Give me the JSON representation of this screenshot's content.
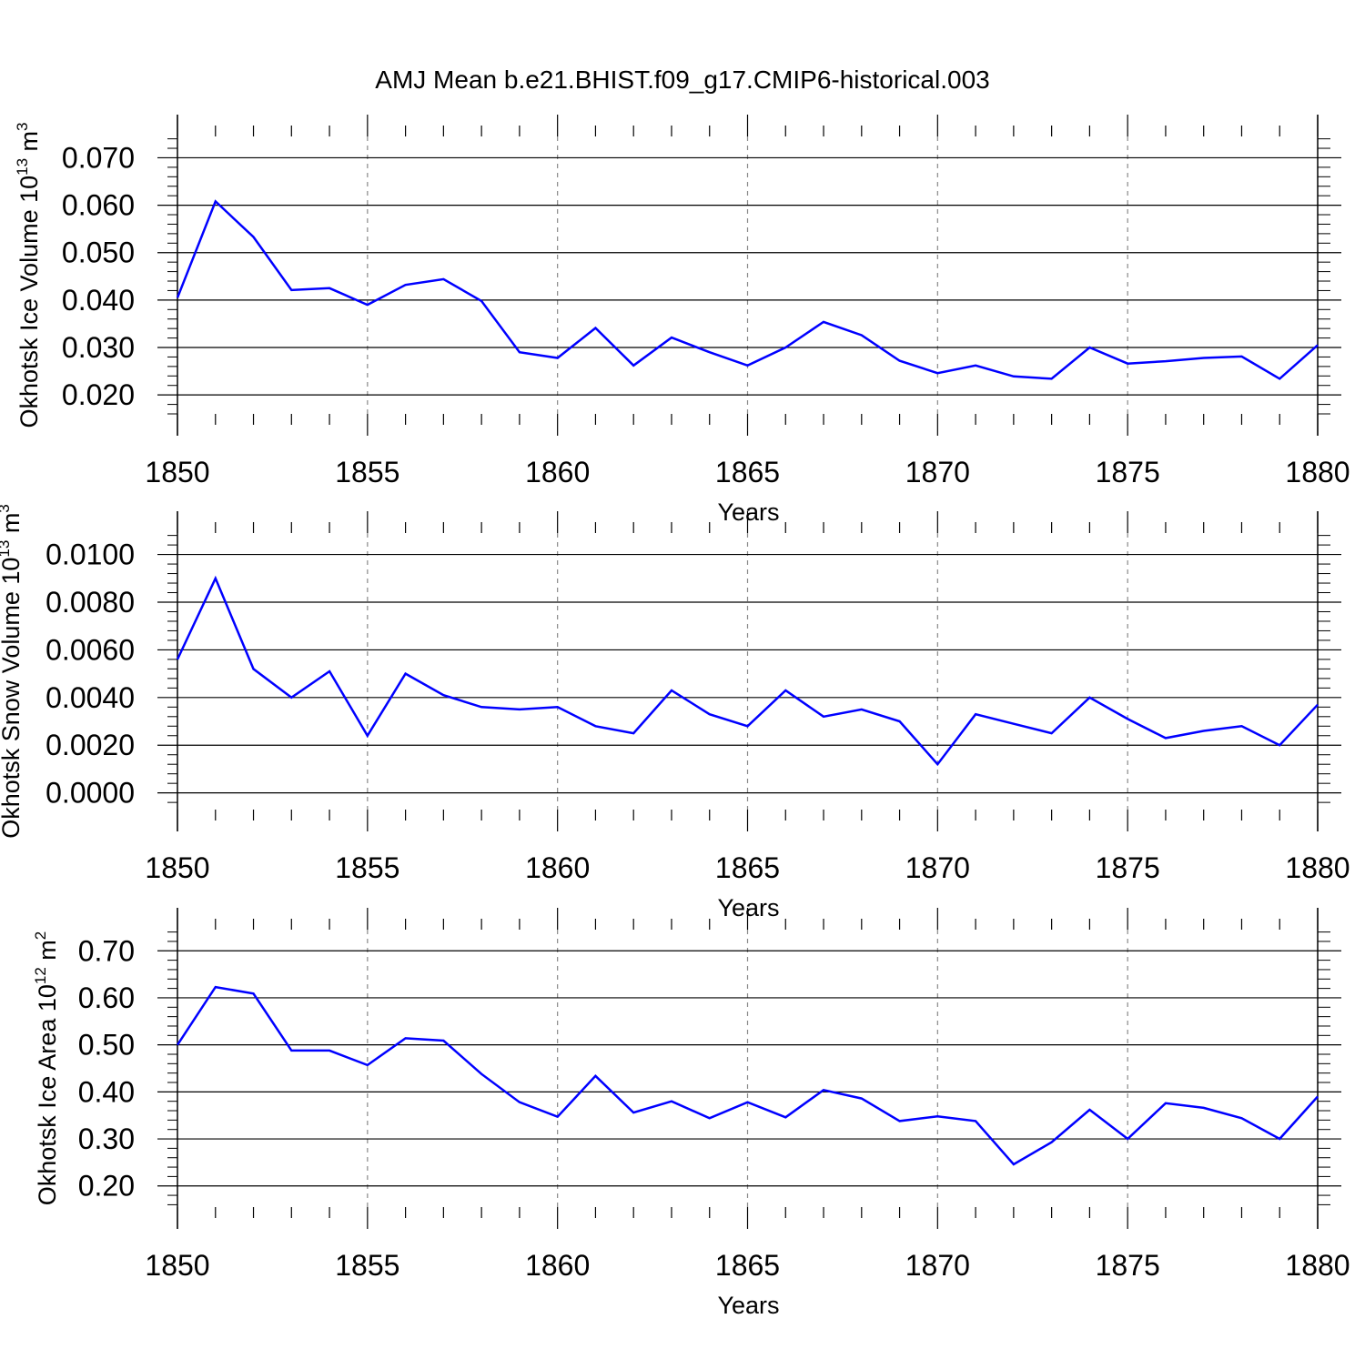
{
  "figure": {
    "title": "AMJ Mean b.e21.BHIST.f09_g17.CMIP6-historical.003"
  },
  "colors": {
    "line": "#0000ff",
    "axis": "#000000",
    "grid": "#888888"
  },
  "chart_data": [
    {
      "type": "line",
      "ylabel_main": "Okhotsk Ice Volume 10",
      "ylabel_exp": "13",
      "ylabel_unit": "m",
      "ylabel_unit_exp": "3",
      "xlabel": "Years",
      "xlim": [
        1850,
        1880
      ],
      "ylim": [
        0.016,
        0.0745
      ],
      "yticks": [
        0.02,
        0.03,
        0.04,
        0.05,
        0.06,
        0.07
      ],
      "ytick_labels": [
        "0.020",
        "0.030",
        "0.040",
        "0.050",
        "0.060",
        "0.070"
      ],
      "xticks": [
        1850,
        1855,
        1860,
        1865,
        1870,
        1875,
        1880
      ],
      "xtick_labels": [
        "1850",
        "1855",
        "1860",
        "1865",
        "1870",
        "1875",
        "1880"
      ],
      "x": [
        1850,
        1851,
        1852,
        1853,
        1854,
        1855,
        1856,
        1857,
        1858,
        1859,
        1860,
        1861,
        1862,
        1863,
        1864,
        1865,
        1866,
        1867,
        1868,
        1869,
        1870,
        1871,
        1872,
        1873,
        1874,
        1875,
        1876,
        1877,
        1878,
        1879,
        1880
      ],
      "values": [
        0.0405,
        0.0608,
        0.0533,
        0.0421,
        0.0425,
        0.039,
        0.0432,
        0.0444,
        0.0398,
        0.029,
        0.0278,
        0.0341,
        0.0262,
        0.0321,
        0.029,
        0.0262,
        0.03,
        0.0354,
        0.0326,
        0.0272,
        0.0246,
        0.0262,
        0.0239,
        0.0234,
        0.03,
        0.0266,
        0.0271,
        0.0278,
        0.0281,
        0.0234,
        0.0305
      ]
    },
    {
      "type": "line",
      "ylabel_main": "Okhotsk Snow Volume 10",
      "ylabel_exp": "13",
      "ylabel_unit": "m",
      "ylabel_unit_exp": "3",
      "xlabel": "Years",
      "xlim": [
        1850,
        1880
      ],
      "ylim": [
        -0.0007,
        0.0109
      ],
      "yticks": [
        0.0,
        0.002,
        0.004,
        0.006,
        0.008,
        0.01
      ],
      "ytick_labels": [
        "0.0000",
        "0.0020",
        "0.0040",
        "0.0060",
        "0.0080",
        "0.0100"
      ],
      "xticks": [
        1850,
        1855,
        1860,
        1865,
        1870,
        1875,
        1880
      ],
      "xtick_labels": [
        "1850",
        "1855",
        "1860",
        "1865",
        "1870",
        "1875",
        "1880"
      ],
      "x": [
        1850,
        1851,
        1852,
        1853,
        1854,
        1855,
        1856,
        1857,
        1858,
        1859,
        1860,
        1861,
        1862,
        1863,
        1864,
        1865,
        1866,
        1867,
        1868,
        1869,
        1870,
        1871,
        1872,
        1873,
        1874,
        1875,
        1876,
        1877,
        1878,
        1879,
        1880
      ],
      "values": [
        0.0056,
        0.009,
        0.0052,
        0.004,
        0.0051,
        0.0024,
        0.005,
        0.0041,
        0.0036,
        0.0035,
        0.0036,
        0.0028,
        0.0025,
        0.0043,
        0.0033,
        0.0028,
        0.0043,
        0.0032,
        0.0035,
        0.003,
        0.0012,
        0.0033,
        0.0029,
        0.0025,
        0.004,
        0.0031,
        0.0023,
        0.0026,
        0.0028,
        0.002,
        0.0037
      ]
    },
    {
      "type": "line",
      "ylabel_main": "Okhotsk Ice Area 10",
      "ylabel_exp": "12",
      "ylabel_unit": "m",
      "ylabel_unit_exp": "2",
      "xlabel": "Years",
      "xlim": [
        1850,
        1880
      ],
      "ylim": [
        0.155,
        0.745
      ],
      "yticks": [
        0.2,
        0.3,
        0.4,
        0.5,
        0.6,
        0.7
      ],
      "ytick_labels": [
        "0.20",
        "0.30",
        "0.40",
        "0.50",
        "0.60",
        "0.70"
      ],
      "xticks": [
        1850,
        1855,
        1860,
        1865,
        1870,
        1875,
        1880
      ],
      "xtick_labels": [
        "1850",
        "1855",
        "1860",
        "1865",
        "1870",
        "1875",
        "1880"
      ],
      "x": [
        1850,
        1851,
        1852,
        1853,
        1854,
        1855,
        1856,
        1857,
        1858,
        1859,
        1860,
        1861,
        1862,
        1863,
        1864,
        1865,
        1866,
        1867,
        1868,
        1869,
        1870,
        1871,
        1872,
        1873,
        1874,
        1875,
        1876,
        1877,
        1878,
        1879,
        1880
      ],
      "values": [
        0.5,
        0.623,
        0.609,
        0.488,
        0.488,
        0.457,
        0.514,
        0.509,
        0.438,
        0.378,
        0.347,
        0.434,
        0.356,
        0.38,
        0.344,
        0.378,
        0.346,
        0.404,
        0.386,
        0.338,
        0.348,
        0.338,
        0.246,
        0.293,
        0.362,
        0.3,
        0.376,
        0.366,
        0.344,
        0.3,
        0.39
      ]
    }
  ]
}
